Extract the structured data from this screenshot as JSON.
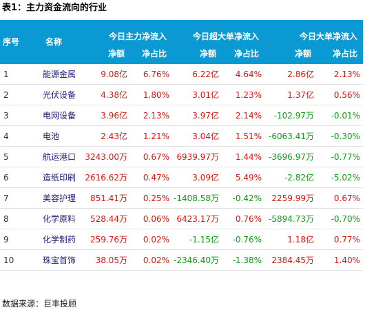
{
  "title": "表1：主力资金流向的行业",
  "columns": {
    "seq": "序号",
    "name": "名称",
    "groups": [
      "今日主力净流入",
      "今日超大单净流入",
      "今日大单净流入"
    ],
    "sub": [
      "净额",
      "净占比"
    ]
  },
  "rows": [
    {
      "idx": "1",
      "name": "能源金属",
      "main_amt": "9.08亿",
      "main_pct": "6.76%",
      "super_amt": "6.22亿",
      "super_pct": "4.64%",
      "large_amt": "2.86亿",
      "large_pct": "2.13%"
    },
    {
      "idx": "2",
      "name": "光伏设备",
      "main_amt": "4.38亿",
      "main_pct": "1.80%",
      "super_amt": "3.01亿",
      "super_pct": "1.23%",
      "large_amt": "1.37亿",
      "large_pct": "0.56%"
    },
    {
      "idx": "3",
      "name": "电网设备",
      "main_amt": "3.96亿",
      "main_pct": "2.13%",
      "super_amt": "3.97亿",
      "super_pct": "2.14%",
      "large_amt": "-102.97万",
      "large_pct": "-0.01%"
    },
    {
      "idx": "4",
      "name": "电池",
      "main_amt": "2.43亿",
      "main_pct": "1.21%",
      "super_amt": "3.04亿",
      "super_pct": "1.51%",
      "large_amt": "-6063.41万",
      "large_pct": "-0.30%"
    },
    {
      "idx": "5",
      "name": "航运港口",
      "main_amt": "3243.00万",
      "main_pct": "0.67%",
      "super_amt": "6939.97万",
      "super_pct": "1.44%",
      "large_amt": "-3696.97万",
      "large_pct": "-0.77%"
    },
    {
      "idx": "6",
      "name": "造纸印刷",
      "main_amt": "2616.62万",
      "main_pct": "0.47%",
      "super_amt": "3.09亿",
      "super_pct": "5.49%",
      "large_amt": "-2.82亿",
      "large_pct": "-5.02%"
    },
    {
      "idx": "7",
      "name": "美容护理",
      "main_amt": "851.41万",
      "main_pct": "0.25%",
      "super_amt": "-1408.58万",
      "super_pct": "-0.42%",
      "large_amt": "2259.99万",
      "large_pct": "0.67%"
    },
    {
      "idx": "8",
      "name": "化学原料",
      "main_amt": "528.44万",
      "main_pct": "0.06%",
      "super_amt": "6423.17万",
      "super_pct": "0.76%",
      "large_amt": "-5894.73万",
      "large_pct": "-0.70%"
    },
    {
      "idx": "9",
      "name": "化学制药",
      "main_amt": "259.76万",
      "main_pct": "0.02%",
      "super_amt": "-1.15亿",
      "super_pct": "-0.76%",
      "large_amt": "1.18亿",
      "large_pct": "0.77%"
    },
    {
      "idx": "10",
      "name": "珠宝首饰",
      "main_amt": "38.05万",
      "main_pct": "0.02%",
      "super_amt": "-2346.40万",
      "super_pct": "-1.38%",
      "large_amt": "2384.45万",
      "large_pct": "1.40%"
    }
  ],
  "colors": {
    "header_bg": "#0b99d3",
    "positive": "#e0140d",
    "negative": "#0a9e12"
  },
  "source": "数据来源：巨丰投顾"
}
